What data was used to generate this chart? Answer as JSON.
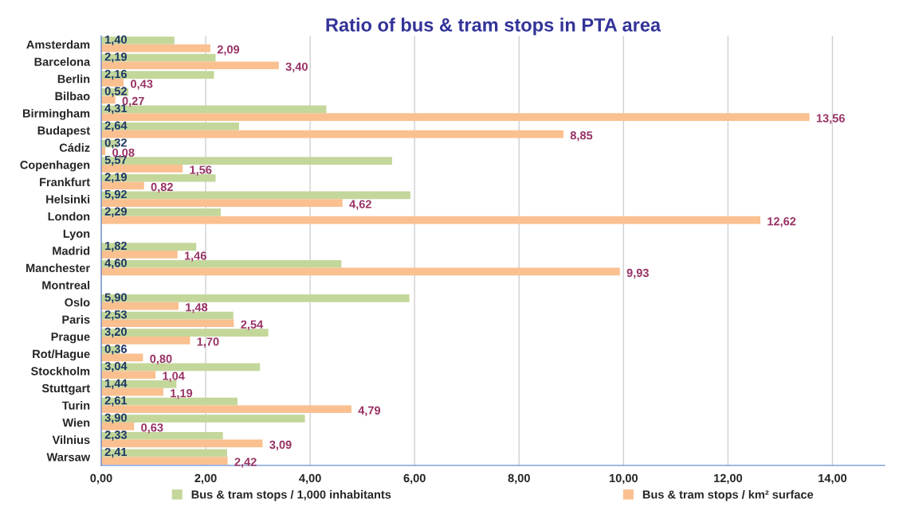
{
  "chart_data": {
    "type": "bar",
    "orientation": "horizontal",
    "title": "Ratio of bus & tram stops in PTA area",
    "categories": [
      "Amsterdam",
      "Barcelona",
      "Berlin",
      "Bilbao",
      "Birmingham",
      "Budapest",
      "Cádiz",
      "Copenhagen",
      "Frankfurt",
      "Helsinki",
      "London",
      "Lyon",
      "Madrid",
      "Manchester",
      "Montreal",
      "Oslo",
      "Paris",
      "Prague",
      "Rot/Hague",
      "Stockholm",
      "Stuttgart",
      "Turin",
      "Wien",
      "Vilnius",
      "Warsaw"
    ],
    "series": [
      {
        "name": "Bus & tram stops / 1,000 inhabitants",
        "color": "#c4d79b",
        "values": [
          1.4,
          2.19,
          2.16,
          0.52,
          4.31,
          2.64,
          0.32,
          5.57,
          2.19,
          5.92,
          2.29,
          null,
          1.82,
          4.6,
          null,
          5.9,
          2.53,
          3.2,
          0.36,
          3.04,
          1.44,
          2.61,
          3.9,
          2.33,
          2.41
        ],
        "value_labels": [
          "1,40",
          "2,19",
          "2,16",
          "0,52",
          "4,31",
          "2,64",
          "0,32",
          "5,57",
          "2,19",
          "5,92",
          "2,29",
          null,
          "1,82",
          "4,60",
          null,
          "5,90",
          "2,53",
          "3,20",
          "0,36",
          "3,04",
          "1,44",
          "2,61",
          "3,90",
          "2,33",
          "2,41"
        ]
      },
      {
        "name": "Bus & tram stops / km² surface",
        "color": "#fac090",
        "values": [
          2.09,
          3.4,
          0.43,
          0.27,
          13.56,
          8.85,
          0.08,
          1.56,
          0.82,
          4.62,
          12.62,
          null,
          1.46,
          9.93,
          null,
          1.48,
          2.54,
          1.7,
          0.8,
          1.04,
          1.19,
          4.79,
          0.63,
          3.09,
          2.42
        ],
        "value_labels": [
          "2,09",
          "3,40",
          "0,43",
          "0,27",
          "13,56",
          "8,85",
          "0,08",
          "1,56",
          "0,82",
          "4,62",
          "12,62",
          null,
          "1,46",
          "9,93",
          null,
          "1,48",
          "2,54",
          "1,70",
          "0,80",
          "1,04",
          "1,19",
          "4,79",
          "0,63",
          "3,09",
          "2,42"
        ]
      }
    ],
    "xlim": [
      0,
      15
    ],
    "xticks": [
      {
        "value": 0,
        "label": "0,00"
      },
      {
        "value": 2,
        "label": "2,00"
      },
      {
        "value": 4,
        "label": "4,00"
      },
      {
        "value": 6,
        "label": "6,00"
      },
      {
        "value": 8,
        "label": "8,00"
      },
      {
        "value": 10,
        "label": "10,00"
      },
      {
        "value": 12,
        "label": "12,00"
      },
      {
        "value": 14,
        "label": "14,00"
      }
    ],
    "grid": "x",
    "legend": "bottom"
  }
}
